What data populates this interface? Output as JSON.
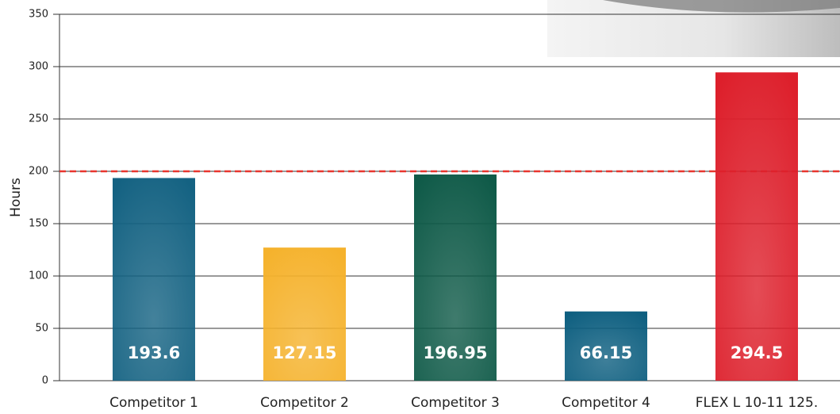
{
  "chart_data": {
    "type": "bar",
    "ylabel": "Hours",
    "categories": [
      "Competitor 1",
      "Competitor 2",
      "Competitor 3",
      "Competitor 4",
      "FLEX L 10-11 125."
    ],
    "values": [
      193.6,
      127.15,
      196.95,
      66.15,
      294.5
    ],
    "colors": [
      "#146282",
      "#f5b22c",
      "#0f5a48",
      "#0e5f80",
      "#dd1f2b"
    ],
    "ylim": [
      0,
      350
    ],
    "yticks": [
      0,
      50,
      100,
      150,
      200,
      250,
      300,
      350
    ],
    "grid": true,
    "reference_line": {
      "value": 200,
      "color": "#e8352e"
    }
  }
}
